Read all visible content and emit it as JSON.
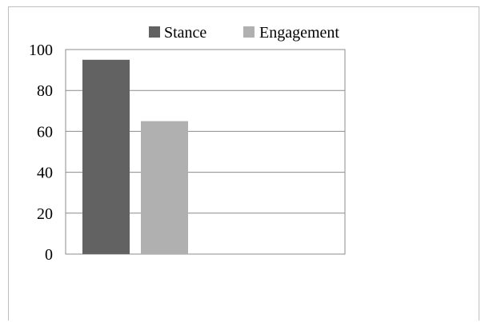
{
  "chart_data": {
    "type": "bar",
    "categories": [
      ""
    ],
    "series": [
      {
        "name": "Stance",
        "values": [
          95
        ],
        "color": "#626262"
      },
      {
        "name": "Engagement",
        "values": [
          65
        ],
        "color": "#b0b0b0"
      }
    ],
    "yticks": [
      "0",
      "20",
      "40",
      "60",
      "80",
      "100"
    ],
    "ylim": [
      0,
      100
    ],
    "grid": true,
    "legend_position": "top"
  }
}
